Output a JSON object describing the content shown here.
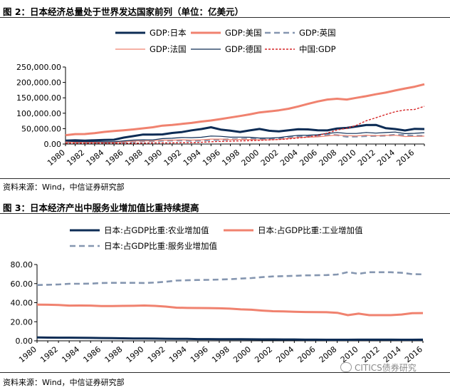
{
  "chart_data": [
    {
      "type": "line",
      "title": "图 2：日本经济总量处于世界发达国家前列（单位：亿美元）",
      "source": "资料来源：Wind，中信证券研究部",
      "x": [
        1980,
        1981,
        1982,
        1983,
        1984,
        1985,
        1986,
        1987,
        1988,
        1989,
        1990,
        1991,
        1992,
        1993,
        1994,
        1995,
        1996,
        1997,
        1998,
        1999,
        2000,
        2001,
        2002,
        2003,
        2004,
        2005,
        2006,
        2007,
        2008,
        2009,
        2010,
        2011,
        2012,
        2013,
        2014,
        2015,
        2016,
        2017
      ],
      "x_tick_labels": [
        "1980",
        "1982",
        "1984",
        "1986",
        "1988",
        "1990",
        "1992",
        "1994",
        "1996",
        "1998",
        "2000",
        "2002",
        "2004",
        "2006",
        "2008",
        "2010",
        "2012",
        "2014",
        "2016"
      ],
      "ylim": [
        0,
        250000
      ],
      "y_ticks": [
        0,
        50000,
        100000,
        150000,
        200000,
        250000
      ],
      "y_tick_labels": [
        "0.00",
        "50,000.00",
        "100,000.00",
        "150,000.00",
        "200,000.00",
        "250,000.00"
      ],
      "legend_position": "top",
      "series": [
        {
          "name": "GDP:日本",
          "color": "#0d2c55",
          "style": "solid-thick",
          "values": [
            11000,
            12000,
            11200,
            12300,
            13100,
            13900,
            20800,
            25800,
            30700,
            30600,
            31300,
            35800,
            38800,
            44400,
            48500,
            54500,
            47100,
            43200,
            39100,
            44300,
            48900,
            43000,
            41200,
            44400,
            48200,
            47500,
            44500,
            44200,
            50400,
            52300,
            57000,
            61600,
            62000,
            51600,
            48500,
            43900,
            49400,
            48700
          ]
        },
        {
          "name": "GDP:美国",
          "color": "#f0826f",
          "style": "solid-thick",
          "values": [
            28600,
            32100,
            32500,
            35400,
            39300,
            42200,
            44600,
            47400,
            51000,
            54400,
            59800,
            61700,
            65200,
            68600,
            72900,
            76400,
            81000,
            86100,
            90900,
            96300,
            102500,
            105800,
            109400,
            114600,
            122100,
            130400,
            138100,
            144500,
            147100,
            144500,
            149900,
            155400,
            161600,
            166900,
            173900,
            180400,
            186200,
            193900
          ]
        },
        {
          "name": "GDP:英国",
          "color": "#8596b0",
          "style": "dashed-thick",
          "values": [
            5600,
            5400,
            5100,
            4900,
            4600,
            4900,
            6100,
            7500,
            9100,
            9300,
            10900,
            11400,
            11800,
            10600,
            11400,
            13400,
            14100,
            15500,
            16300,
            16600,
            16400,
            16200,
            17700,
            20500,
            24200,
            25400,
            26900,
            30600,
            28900,
            23900,
            24300,
            26000,
            26300,
            27400,
            30200,
            28900,
            26500,
            26400
          ]
        },
        {
          "name": "GDP:法国",
          "color": "#f0826f",
          "style": "solid-thin",
          "values": [
            7000,
            6100,
            5800,
            5500,
            5300,
            5500,
            7700,
            9200,
            10000,
            10000,
            12700,
            12500,
            13700,
            12800,
            13700,
            16000,
            16000,
            14600,
            15000,
            14900,
            13700,
            13800,
            14900,
            18400,
            21200,
            22000,
            23200,
            26500,
            29200,
            27000,
            26500,
            28600,
            26800,
            28100,
            28500,
            24200,
            24700,
            25800
          ]
        },
        {
          "name": "GDP:德国",
          "color": "#0d2c55",
          "style": "solid-thin",
          "values": [
            9500,
            8100,
            7800,
            7700,
            7200,
            7300,
            10300,
            12700,
            13700,
            13500,
            17600,
            18700,
            21200,
            20700,
            22100,
            25900,
            25100,
            22200,
            22400,
            21900,
            19500,
            19500,
            20800,
            25000,
            28200,
            28600,
            30000,
            34400,
            37500,
            34200,
            34200,
            37600,
            35400,
            37300,
            38900,
            33800,
            34800,
            36800
          ]
        },
        {
          "name": "中国:GDP",
          "color": "#d62728",
          "style": "dotted",
          "values": [
            3000,
            2900,
            2800,
            3000,
            3100,
            3100,
            3000,
            2700,
            3100,
            3500,
            3600,
            3800,
            4300,
            4400,
            5600,
            7300,
            8600,
            9600,
            10300,
            10900,
            12100,
            13400,
            14700,
            16600,
            19600,
            22900,
            27500,
            35500,
            45600,
            51100,
            60900,
            75500,
            85300,
            95700,
            104800,
            110600,
            112300,
            122400
          ]
        }
      ]
    },
    {
      "type": "line",
      "title": "图 3：日本经济产出中服务业增加值比重持续提高",
      "source": "资料来源：Wind，中信证券研究部",
      "x": [
        1980,
        1981,
        1982,
        1983,
        1984,
        1985,
        1986,
        1987,
        1988,
        1989,
        1990,
        1991,
        1992,
        1993,
        1994,
        1995,
        1996,
        1997,
        1998,
        1999,
        2000,
        2001,
        2002,
        2003,
        2004,
        2005,
        2006,
        2007,
        2008,
        2009,
        2010,
        2011,
        2012,
        2013,
        2014,
        2015,
        2016
      ],
      "x_tick_labels": [
        "1980",
        "1982",
        "1984",
        "1986",
        "1988",
        "1990",
        "1992",
        "1994",
        "1996",
        "1998",
        "2000",
        "2002",
        "2004",
        "2006",
        "2008",
        "2010",
        "2012",
        "2014",
        "2016"
      ],
      "ylim": [
        0,
        80
      ],
      "y_ticks": [
        0,
        20,
        40,
        60,
        80
      ],
      "y_tick_labels": [
        "0.00",
        "20.00",
        "40.00",
        "60.00",
        "80.00"
      ],
      "legend_position": "top",
      "series": [
        {
          "name": "日本:占GDP比重:农业增加值",
          "color": "#0d2c55",
          "style": "solid-thick",
          "values": [
            3.5,
            3.4,
            3.3,
            3.3,
            3.2,
            3.1,
            2.9,
            2.8,
            2.6,
            2.5,
            2.4,
            2.3,
            2.2,
            2.0,
            2.0,
            1.8,
            1.8,
            1.7,
            1.7,
            1.7,
            1.6,
            1.5,
            1.5,
            1.4,
            1.4,
            1.2,
            1.2,
            1.1,
            1.1,
            1.1,
            1.2,
            1.2,
            1.2,
            1.2,
            1.1,
            1.1,
            1.2
          ]
        },
        {
          "name": "日本:占GDP比重:工业增加值",
          "color": "#f0826f",
          "style": "solid-thick",
          "values": [
            38.0,
            37.8,
            37.6,
            36.9,
            37.0,
            36.9,
            36.5,
            36.4,
            36.6,
            36.7,
            37.0,
            36.6,
            35.9,
            34.8,
            34.5,
            34.4,
            34.3,
            34.1,
            33.7,
            33.0,
            32.6,
            31.7,
            31.0,
            30.8,
            30.5,
            30.2,
            30.1,
            30.0,
            29.4,
            26.9,
            28.5,
            26.9,
            26.9,
            26.9,
            27.6,
            29.0,
            29.1
          ]
        },
        {
          "name": "日本:占GDP比重:服务业增加值",
          "color": "#8596b0",
          "style": "dashed-thick",
          "values": [
            58.5,
            58.8,
            59.1,
            59.8,
            59.8,
            60.0,
            60.6,
            60.8,
            60.8,
            60.8,
            60.6,
            61.1,
            61.9,
            63.2,
            63.5,
            63.8,
            63.9,
            64.2,
            64.6,
            65.3,
            65.8,
            66.8,
            67.5,
            67.8,
            68.1,
            68.6,
            68.7,
            68.9,
            69.5,
            72.0,
            70.3,
            71.9,
            71.9,
            71.9,
            71.3,
            69.9,
            69.7
          ]
        }
      ]
    }
  ],
  "watermark": "CITICS债券研究"
}
